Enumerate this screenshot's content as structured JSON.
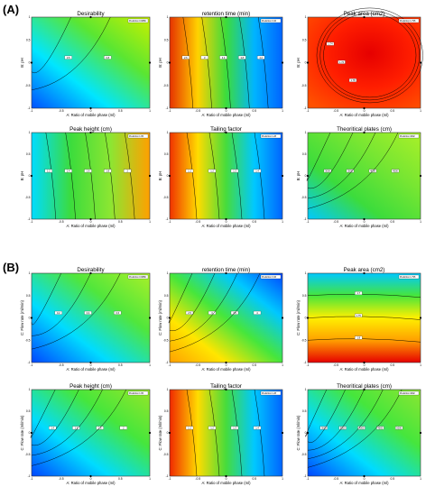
{
  "figure": {
    "section_labels": [
      "(A)",
      "(B)"
    ],
    "prediction_label": "Prediction"
  },
  "chart_data": [
    {
      "id": "A1",
      "section": "A",
      "type": "heatmap",
      "title": "Desirability",
      "xlabel": "A: Ratio of mobile phase (ml)",
      "ylabel": "B: pH",
      "xlim": [
        -1,
        1
      ],
      "ylim": [
        -1,
        1
      ],
      "xticks": [
        -1,
        -0.5,
        0,
        0.5,
        1
      ],
      "yticks": [
        -1,
        -0.5,
        0,
        0.5,
        1
      ],
      "colors": [
        "#0050ff",
        "#00e6ff",
        "#5ae632",
        "#c8f000"
      ],
      "gradient": "diagonal",
      "contours": 2,
      "contour_labels": [
        "0.5",
        "0.8"
      ],
      "prediction": "0.9889"
    },
    {
      "id": "A2",
      "section": "A",
      "type": "heatmap",
      "title": "retention time (min)",
      "xlabel": "A: Ratio of mobile phase (ml)",
      "ylabel": "B: pH",
      "xlim": [
        -1,
        1
      ],
      "ylim": [
        -1,
        1
      ],
      "xticks": [
        -1,
        -0.5,
        0,
        0.5,
        1
      ],
      "yticks": [
        -1,
        -0.5,
        0,
        0.5,
        1
      ],
      "colors": [
        "#e63200",
        "#ffd200",
        "#3cdc3c",
        "#00b4ff",
        "#0064ff"
      ],
      "gradient": "horizontal",
      "contours": 5,
      "contour_labels": [
        "2.6",
        "3",
        "3.4",
        "3.8",
        "4.2"
      ],
      "prediction": "3.46"
    },
    {
      "id": "A3",
      "section": "A",
      "type": "heatmap",
      "title": "Peak area (cm2)",
      "xlabel": "A: Ratio of mobile phase (ml)",
      "ylabel": "B: pH",
      "xlim": [
        -1,
        1
      ],
      "ylim": [
        -1,
        1
      ],
      "xticks": [
        -1,
        -0.5,
        0,
        0.5,
        1
      ],
      "yticks": [
        -1,
        -0.5,
        0,
        0.5,
        1
      ],
      "colors": [
        "#e60000",
        "#ff1e00",
        "#ff5000"
      ],
      "gradient": "radial",
      "contours": 3,
      "contour_labels": [
        "1.74",
        "1.76",
        "1.78"
      ],
      "prediction": "1.795"
    },
    {
      "id": "A4",
      "section": "A",
      "type": "heatmap",
      "title": "Peak height (cm)",
      "xlabel": "A: Ratio of mobile phase (ml)",
      "ylabel": "B: pH",
      "xlim": [
        -1,
        1
      ],
      "ylim": [
        -1,
        1
      ],
      "xticks": [
        -1,
        -0.5,
        0,
        0.5,
        1
      ],
      "yticks": [
        -1,
        -0.5,
        0,
        0.5,
        1
      ],
      "colors": [
        "#00dcff",
        "#3cdc3c",
        "#8ce632",
        "#ffa000"
      ],
      "gradient": "horizontal",
      "contours": 5,
      "contour_labels": [
        "1.2",
        "1.4",
        "1.6",
        "1.8",
        "2"
      ],
      "prediction": "1.95"
    },
    {
      "id": "A5",
      "section": "A",
      "type": "heatmap",
      "title": "Tailing factor",
      "xlabel": "A: Ratio of mobile phase (ml)",
      "ylabel": "B: pH",
      "xlim": [
        -1,
        1
      ],
      "ylim": [
        -1,
        1
      ],
      "xticks": [
        -1,
        -0.5,
        0,
        0.5,
        1
      ],
      "yticks": [
        -1,
        -0.5,
        0,
        0.5,
        1
      ],
      "colors": [
        "#f03200",
        "#ffdc00",
        "#46dc3c",
        "#00c8ff",
        "#0064ff"
      ],
      "gradient": "horizontal",
      "contours": 4,
      "contour_labels": [
        "1.1",
        "1.2",
        "1.3",
        "1.4"
      ],
      "prediction": "1.28"
    },
    {
      "id": "A6",
      "section": "A",
      "type": "heatmap",
      "title": "Theoritical plates (cm)",
      "xlabel": "A: Ratio of mobile phase (ml)",
      "ylabel": "B: pH",
      "xlim": [
        -1,
        1
      ],
      "ylim": [
        -1,
        1
      ],
      "xticks": [
        -1,
        -0.5,
        0,
        0.5,
        1
      ],
      "yticks": [
        -1,
        -0.5,
        0,
        0.5,
        1
      ],
      "colors": [
        "#00c8ff",
        "#3cdc3c",
        "#78e632",
        "#aaf028"
      ],
      "gradient": "diagonal",
      "contours": 4,
      "contour_labels": [
        "3000",
        "3500",
        "4000",
        "4500"
      ],
      "prediction": "4602"
    },
    {
      "id": "B1",
      "section": "B",
      "type": "heatmap",
      "title": "Desirability",
      "xlabel": "A: Ratio of mobile phase (ml)",
      "ylabel": "C: Flow rate (ml/min)",
      "xlim": [
        -1,
        1
      ],
      "ylim": [
        -1,
        1
      ],
      "xticks": [
        -1,
        -0.5,
        0,
        0.5,
        1
      ],
      "yticks": [
        -1,
        -0.5,
        0,
        0.5,
        1
      ],
      "colors": [
        "#0046ff",
        "#00dcff",
        "#50e63c",
        "#aaf028"
      ],
      "gradient": "diagonal",
      "contours": 3,
      "contour_labels": [
        "0.2",
        "0.4",
        "0.6"
      ],
      "prediction": "0.9889"
    },
    {
      "id": "B2",
      "section": "B",
      "type": "heatmap",
      "title": "retention time (min)",
      "xlabel": "A: Ratio of mobile phase (ml)",
      "ylabel": "C: Flow rate (ml/min)",
      "xlim": [
        -1,
        1
      ],
      "ylim": [
        -1,
        1
      ],
      "xticks": [
        -1,
        -0.5,
        0,
        0.5,
        1
      ],
      "yticks": [
        -1,
        -0.5,
        0,
        0.5,
        1
      ],
      "colors": [
        "#ffa000",
        "#ffe600",
        "#46e63c",
        "#00c8ff",
        "#0046ff"
      ],
      "gradient": "diagonal",
      "contours": 4,
      "contour_labels": [
        "2.5",
        "3",
        "3.5",
        "4"
      ],
      "prediction": "3.46"
    },
    {
      "id": "B3",
      "section": "B",
      "type": "heatmap",
      "title": "Peak area (cm2)",
      "xlabel": "A: Ratio of mobile phase (ml)",
      "ylabel": "C: Flow rate (ml/min)",
      "xlim": [
        -1,
        1
      ],
      "ylim": [
        -1,
        1
      ],
      "xticks": [
        -1,
        -0.5,
        0,
        0.5,
        1
      ],
      "yticks": [
        -1,
        -0.5,
        0,
        0.5,
        1
      ],
      "colors": [
        "#00c8ff",
        "#46e63c",
        "#fff000",
        "#ffa000",
        "#e60000"
      ],
      "gradient": "vertical",
      "contours": 3,
      "contour_labels": [
        "1.7",
        "1.75",
        "1.8"
      ],
      "prediction": "1.795"
    },
    {
      "id": "B4",
      "section": "B",
      "type": "heatmap",
      "title": "Peak height (cm)",
      "xlabel": "A: Ratio of mobile phase (ml)",
      "ylabel": "C: Flow rate (ml/min)",
      "xlim": [
        -1,
        1
      ],
      "ylim": [
        -1,
        1
      ],
      "xticks": [
        -1,
        -0.5,
        0,
        0.5,
        1
      ],
      "yticks": [
        -1,
        -0.5,
        0,
        0.5,
        1
      ],
      "colors": [
        "#0046ff",
        "#00dcff",
        "#46e63c",
        "#96e628"
      ],
      "gradient": "diagonal",
      "contours": 4,
      "contour_labels": [
        "1.4",
        "1.6",
        "1.8",
        "2"
      ],
      "prediction": "1.95"
    },
    {
      "id": "B5",
      "section": "B",
      "type": "heatmap",
      "title": "Tailing factor",
      "xlabel": "A: Ratio of mobile phase (ml)",
      "ylabel": "C: Flow rate (ml/min)",
      "xlim": [
        -1,
        1
      ],
      "ylim": [
        -1,
        1
      ],
      "xticks": [
        -1,
        -0.5,
        0,
        0.5,
        1
      ],
      "yticks": [
        -1,
        -0.5,
        0,
        0.5,
        1
      ],
      "colors": [
        "#f02800",
        "#ffdc00",
        "#46dc3c",
        "#00c8ff",
        "#0064ff"
      ],
      "gradient": "horizontal",
      "contours": 4,
      "contour_labels": [
        "1.1",
        "1.2",
        "1.3",
        "1.4"
      ],
      "prediction": "1.28"
    },
    {
      "id": "B6",
      "section": "B",
      "type": "heatmap",
      "title": "Theoritical plates (cm)",
      "xlabel": "A: Ratio of mobile phase (ml)",
      "ylabel": "C: Flow rate (ml/min)",
      "xlim": [
        -1,
        1
      ],
      "ylim": [
        -1,
        1
      ],
      "xticks": [
        -1,
        -0.5,
        0,
        0.5,
        1
      ],
      "yticks": [
        -1,
        -0.5,
        0,
        0.5,
        1
      ],
      "colors": [
        "#0046ff",
        "#00dcff",
        "#46e63c",
        "#8ce632"
      ],
      "gradient": "diagonal",
      "contours": 5,
      "contour_labels": [
        "3000",
        "3500",
        "4000",
        "4500",
        "5000"
      ],
      "prediction": "4602"
    }
  ]
}
